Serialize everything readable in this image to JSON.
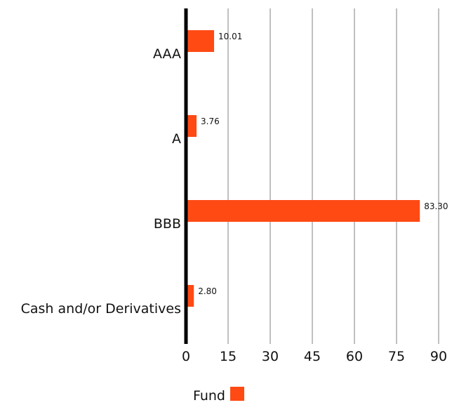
{
  "chart_data": {
    "type": "bar",
    "orientation": "horizontal",
    "categories": [
      "AAA",
      "A",
      "BBB",
      "Cash and/or Derivatives"
    ],
    "series": [
      {
        "name": "Fund",
        "values": [
          10.01,
          3.76,
          83.3,
          2.8
        ],
        "value_labels": [
          "10.01",
          "3.76",
          "83.30",
          "2.80"
        ],
        "color": "#ff4a14"
      }
    ],
    "xlim": [
      0,
      90
    ],
    "xticks": [
      0,
      15,
      30,
      45,
      60,
      75,
      90
    ],
    "grid": true,
    "grid_color": "#c0c0c0",
    "axis_color": "#000000",
    "legend_position": "bottom-center"
  }
}
